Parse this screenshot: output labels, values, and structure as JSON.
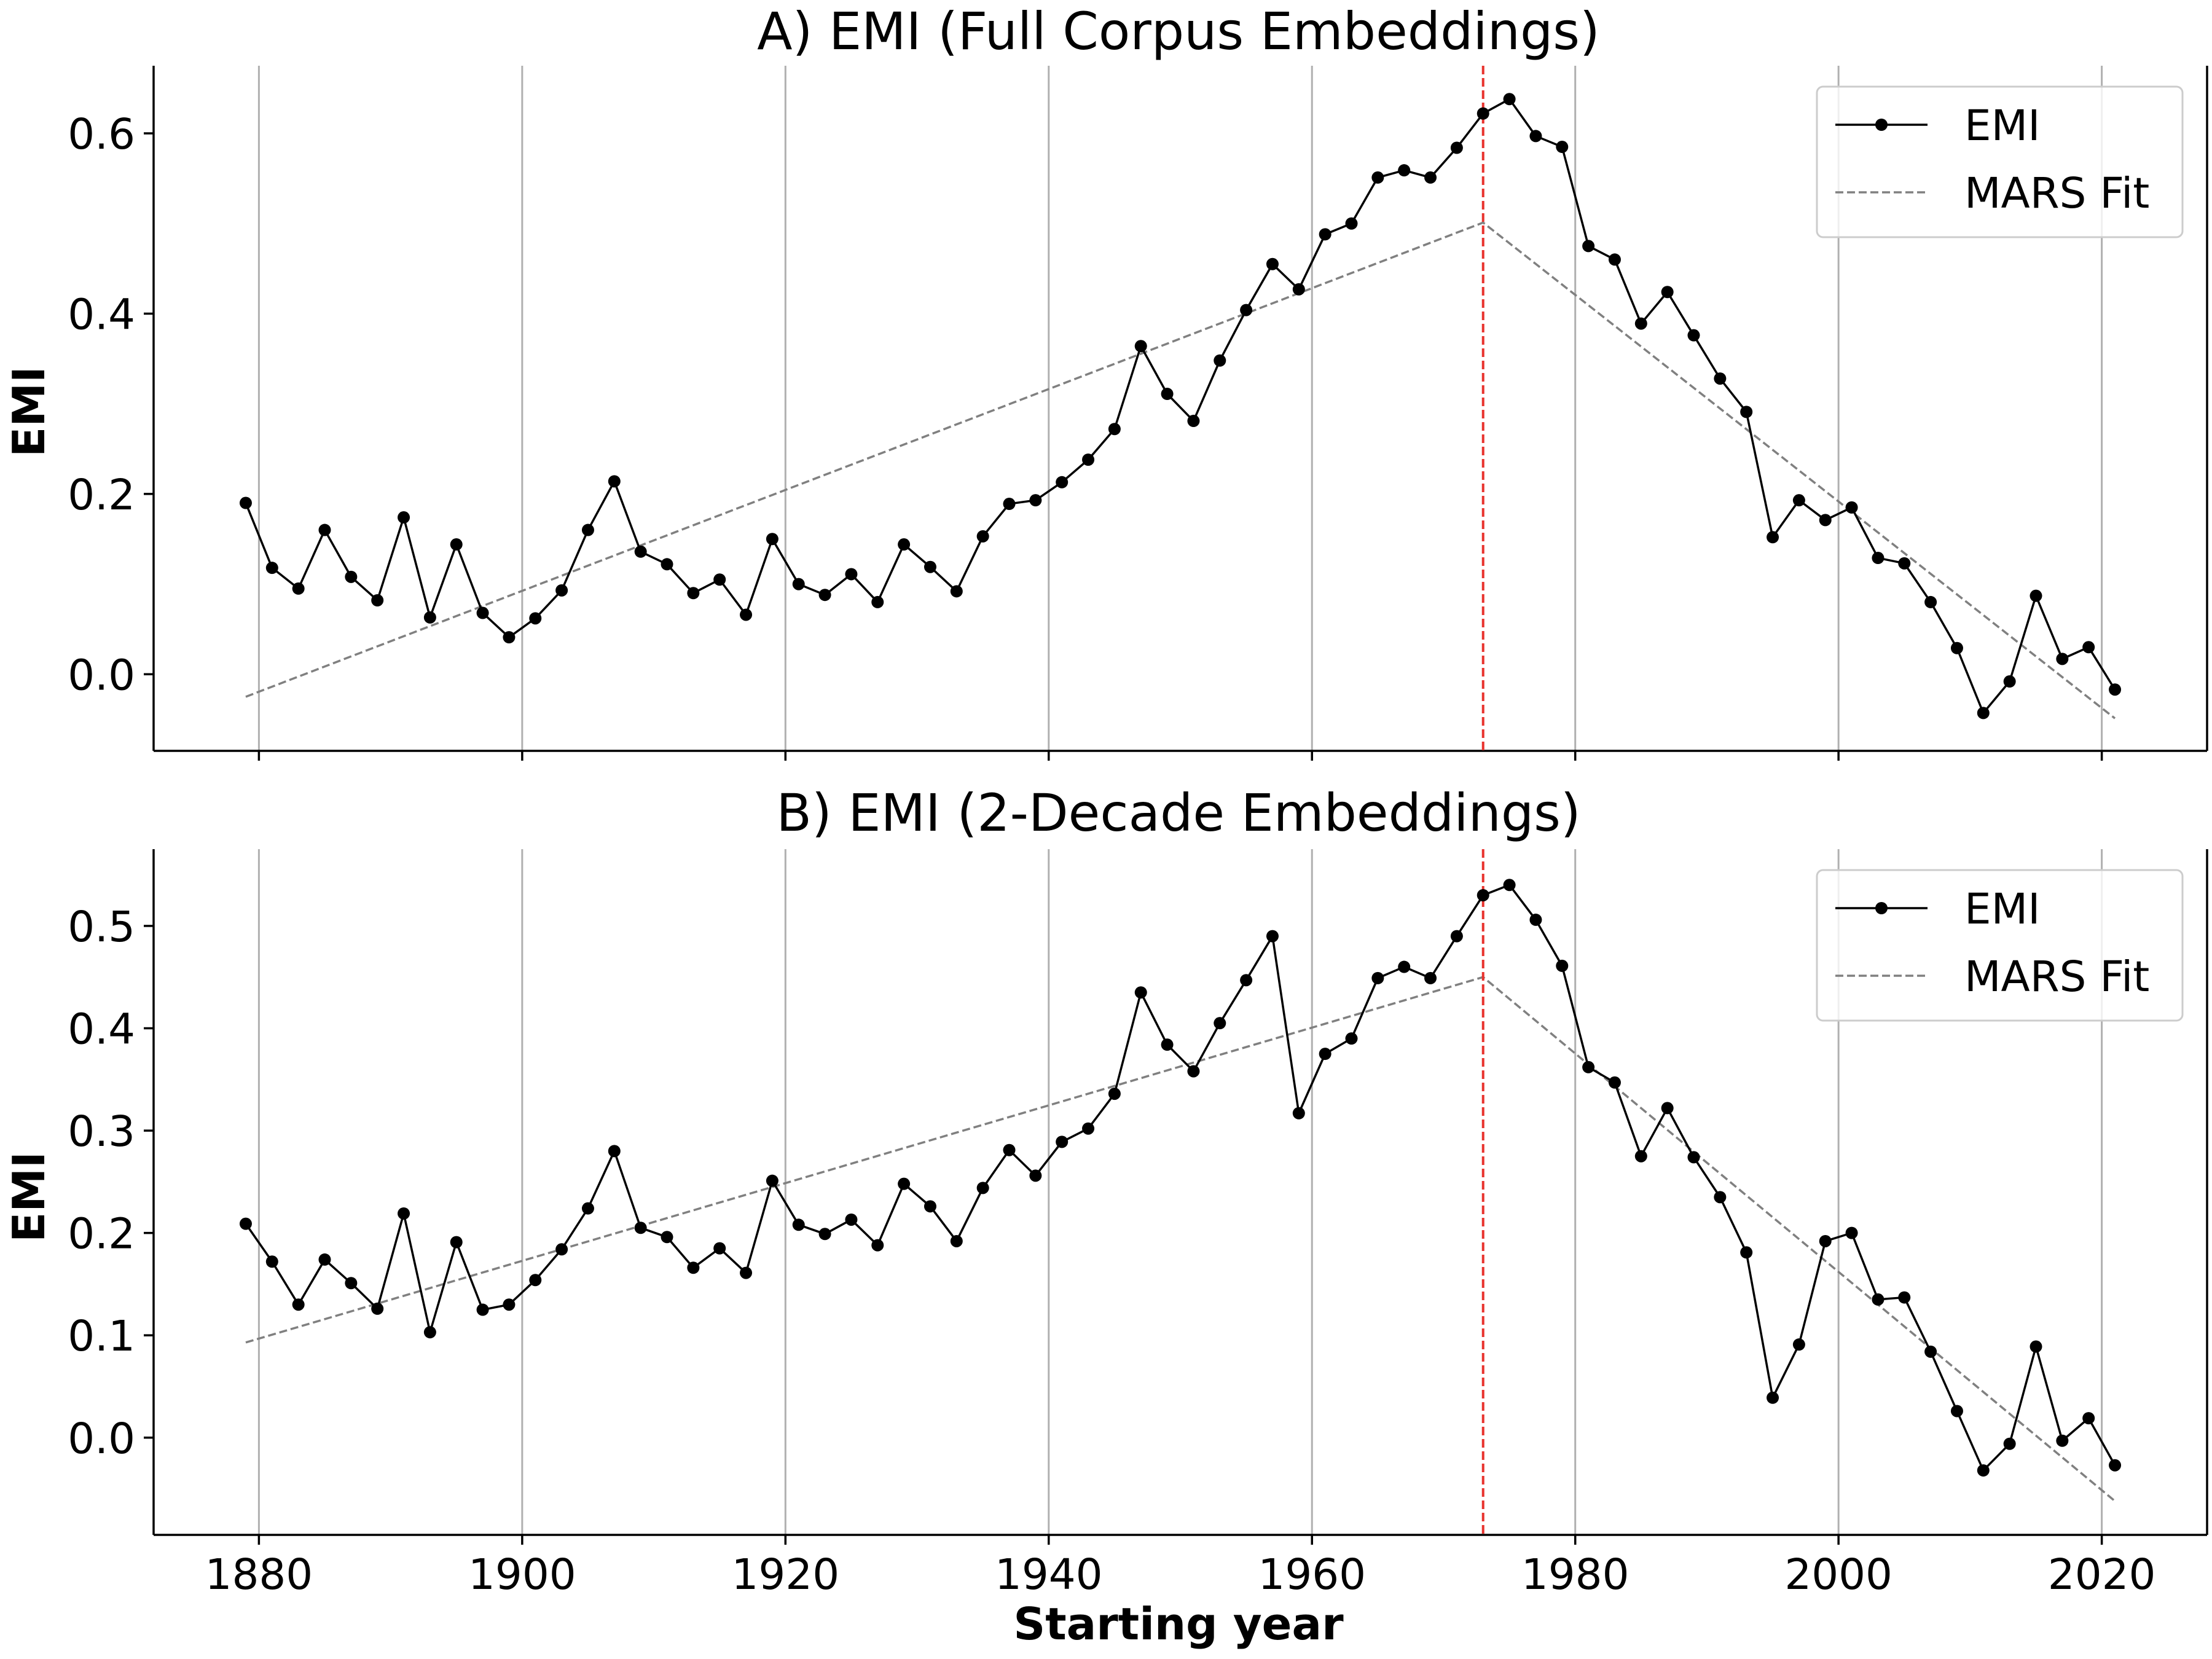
{
  "chart_data": [
    {
      "type": "line",
      "title": "A) EMI (Full Corpus Embeddings)",
      "xlabel": "",
      "ylabel": "EMI",
      "xlim": [
        1872,
        2028
      ],
      "ylim": [
        -0.085,
        0.675
      ],
      "x_ticks": [
        1880,
        1900,
        1920,
        1940,
        1960,
        1980,
        2000,
        2020
      ],
      "y_ticks": [
        0.0,
        0.2,
        0.4,
        0.6
      ],
      "y_tick_labels": [
        "0.0",
        "0.2",
        "0.4",
        "0.6"
      ],
      "x_ticks_labeled": false,
      "grid": "vertical",
      "legend_position": "top-right",
      "vline": {
        "x": 1973,
        "color": "#e8322d"
      },
      "series": [
        {
          "name": "EMI",
          "color": "#000000",
          "marker": "circle",
          "style": "solid",
          "x": [
            1879,
            1881,
            1883,
            1885,
            1887,
            1889,
            1891,
            1893,
            1895,
            1897,
            1899,
            1901,
            1903,
            1905,
            1907,
            1909,
            1911,
            1913,
            1915,
            1917,
            1919,
            1921,
            1923,
            1925,
            1927,
            1929,
            1931,
            1933,
            1935,
            1937,
            1939,
            1941,
            1943,
            1945,
            1947,
            1949,
            1951,
            1953,
            1955,
            1957,
            1959,
            1961,
            1963,
            1965,
            1967,
            1969,
            1971,
            1973,
            1975,
            1977,
            1979,
            1981,
            1983,
            1985,
            1987,
            1989,
            1991,
            1993,
            1995,
            1997,
            1999,
            2001,
            2003,
            2005,
            2007,
            2009,
            2011,
            2013,
            2015,
            2017,
            2019,
            2021
          ],
          "y": [
            0.19,
            0.118,
            0.095,
            0.16,
            0.108,
            0.082,
            0.174,
            0.063,
            0.144,
            0.068,
            0.041,
            0.062,
            0.093,
            0.16,
            0.214,
            0.136,
            0.122,
            0.09,
            0.105,
            0.066,
            0.15,
            0.1,
            0.088,
            0.111,
            0.08,
            0.144,
            0.119,
            0.092,
            0.153,
            0.189,
            0.193,
            0.213,
            0.238,
            0.272,
            0.364,
            0.311,
            0.281,
            0.348,
            0.404,
            0.455,
            0.427,
            0.488,
            0.5,
            0.551,
            0.559,
            0.551,
            0.584,
            0.622,
            0.638,
            0.597,
            0.585,
            0.475,
            0.46,
            0.389,
            0.424,
            0.376,
            0.328,
            0.291,
            0.152,
            0.193,
            0.171,
            0.185,
            0.129,
            0.123,
            0.08,
            0.029,
            -0.043,
            -0.008,
            0.087,
            0.017,
            0.03,
            -0.017
          ]
        },
        {
          "name": "MARS Fit",
          "color": "#808080",
          "style": "dashed",
          "x": [
            1879,
            1973,
            2021
          ],
          "y": [
            -0.025,
            0.501,
            -0.049
          ]
        }
      ]
    },
    {
      "type": "line",
      "title": "B) EMI (2-Decade Embeddings)",
      "xlabel": "Starting year",
      "ylabel": "EMI",
      "xlim": [
        1872,
        2028
      ],
      "ylim": [
        -0.095,
        0.575
      ],
      "x_ticks": [
        1880,
        1900,
        1920,
        1940,
        1960,
        1980,
        2000,
        2020
      ],
      "x_tick_labels": [
        "1880",
        "1900",
        "1920",
        "1940",
        "1960",
        "1980",
        "2000",
        "2020"
      ],
      "y_ticks": [
        0.0,
        0.1,
        0.2,
        0.3,
        0.4,
        0.5
      ],
      "y_tick_labels": [
        "0.0",
        "0.1",
        "0.2",
        "0.3",
        "0.4",
        "0.5"
      ],
      "x_ticks_labeled": true,
      "grid": "vertical",
      "legend_position": "top-right",
      "vline": {
        "x": 1973,
        "color": "#e8322d"
      },
      "series": [
        {
          "name": "EMI",
          "color": "#000000",
          "marker": "circle",
          "style": "solid",
          "x": [
            1879,
            1881,
            1883,
            1885,
            1887,
            1889,
            1891,
            1893,
            1895,
            1897,
            1899,
            1901,
            1903,
            1905,
            1907,
            1909,
            1911,
            1913,
            1915,
            1917,
            1919,
            1921,
            1923,
            1925,
            1927,
            1929,
            1931,
            1933,
            1935,
            1937,
            1939,
            1941,
            1943,
            1945,
            1947,
            1949,
            1951,
            1953,
            1955,
            1957,
            1959,
            1961,
            1963,
            1965,
            1967,
            1969,
            1971,
            1973,
            1975,
            1977,
            1979,
            1981,
            1983,
            1985,
            1987,
            1989,
            1991,
            1993,
            1995,
            1997,
            1999,
            2001,
            2003,
            2005,
            2007,
            2009,
            2011,
            2013,
            2015,
            2017,
            2019,
            2021
          ],
          "y": [
            0.209,
            0.172,
            0.13,
            0.174,
            0.151,
            0.126,
            0.219,
            0.103,
            0.191,
            0.125,
            0.13,
            0.154,
            0.184,
            0.224,
            0.28,
            0.205,
            0.196,
            0.166,
            0.185,
            0.161,
            0.251,
            0.208,
            0.199,
            0.213,
            0.188,
            0.248,
            0.226,
            0.192,
            0.244,
            0.281,
            0.256,
            0.289,
            0.302,
            0.336,
            0.435,
            0.384,
            0.358,
            0.405,
            0.447,
            0.49,
            0.317,
            0.375,
            0.39,
            0.449,
            0.46,
            0.449,
            0.49,
            0.53,
            0.54,
            0.506,
            0.461,
            0.362,
            0.347,
            0.275,
            0.322,
            0.274,
            0.235,
            0.181,
            0.039,
            0.091,
            0.192,
            0.2,
            0.135,
            0.137,
            0.084,
            0.026,
            -0.032,
            -0.006,
            0.089,
            -0.003,
            0.019,
            -0.027
          ]
        },
        {
          "name": "MARS Fit",
          "color": "#808080",
          "style": "dashed",
          "x": [
            1879,
            1973,
            2021
          ],
          "y": [
            0.093,
            0.45,
            -0.062
          ]
        }
      ]
    }
  ]
}
